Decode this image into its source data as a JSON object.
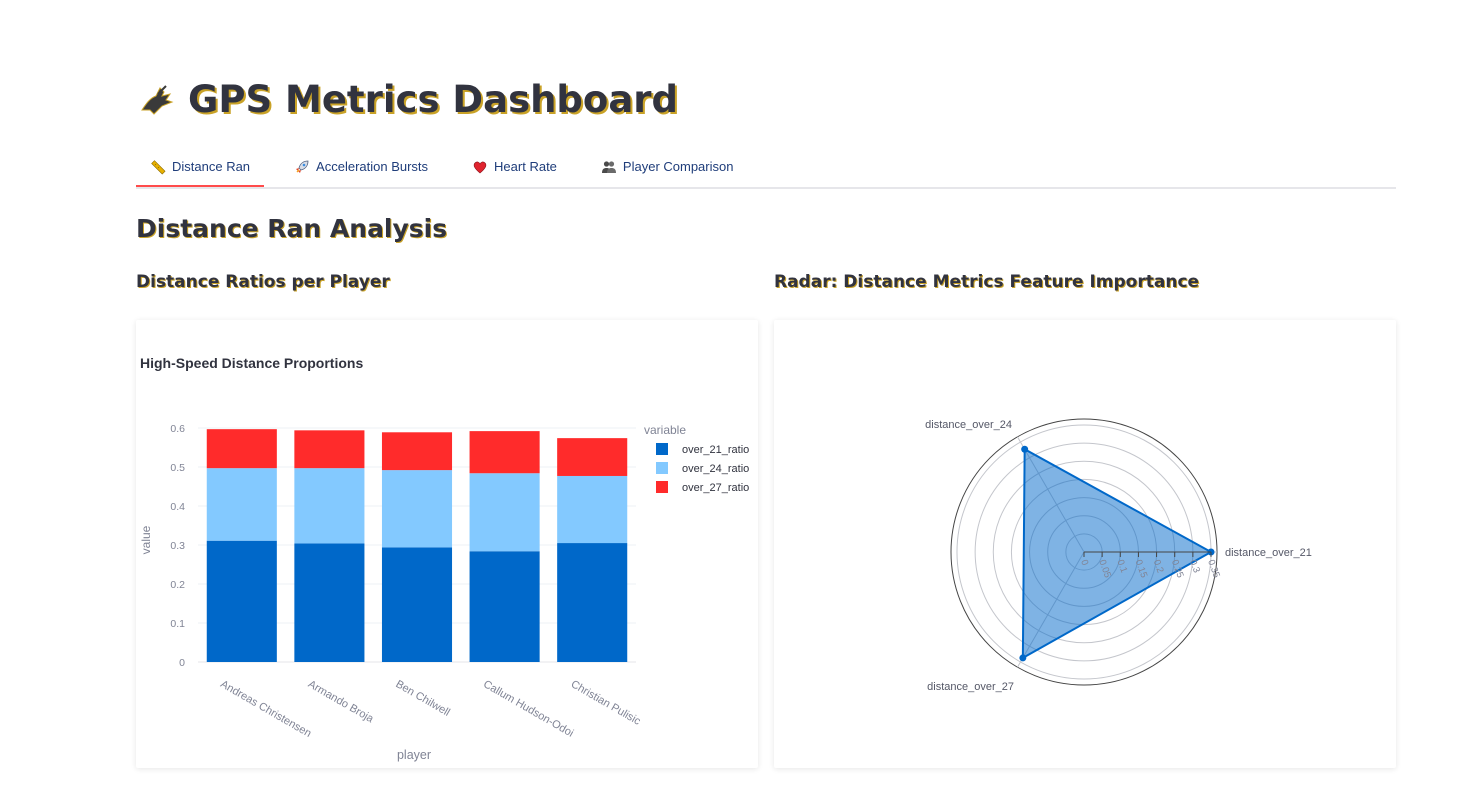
{
  "page": {
    "title": "GPS Metrics Dashboard",
    "title_icon": "shoe-icon"
  },
  "tabs": [
    {
      "label": "Distance Ran",
      "icon": "ruler-icon",
      "active": true
    },
    {
      "label": "Acceleration Bursts",
      "icon": "rocket-icon",
      "active": false
    },
    {
      "label": "Heart Rate",
      "icon": "heart-icon",
      "active": false
    },
    {
      "label": "Player Comparison",
      "icon": "people-icon",
      "active": false
    }
  ],
  "section": {
    "title": "Distance Ran Analysis",
    "left_subtitle": "Distance Ratios per Player",
    "right_subtitle": "Radar: Distance Metrics Feature Importance"
  },
  "colors": {
    "accent": "#ff4b4b",
    "series1": "#0068c9",
    "series2": "#83c9ff",
    "series3": "#ff2b2b"
  },
  "chart_data": [
    {
      "type": "bar",
      "stacked": true,
      "title": "High-Speed Distance Proportions",
      "xlabel": "player",
      "ylabel": "value",
      "legend_title": "variable",
      "legend_position": "top-right",
      "ylim": [
        0,
        0.6
      ],
      "yticks": [
        "0",
        "0.1",
        "0.2",
        "0.3",
        "0.4",
        "0.5",
        "0.6"
      ],
      "categories": [
        "Andreas Christensen",
        "Armando Broja",
        "Ben Chilwell",
        "Callum Hudson-Odoi",
        "Christian Pulisic"
      ],
      "series": [
        {
          "name": "over_21_ratio",
          "values": [
            0.311,
            0.304,
            0.294,
            0.284,
            0.305
          ]
        },
        {
          "name": "over_24_ratio",
          "values": [
            0.186,
            0.193,
            0.198,
            0.2,
            0.172
          ]
        },
        {
          "name": "over_27_ratio",
          "values": [
            0.1,
            0.097,
            0.097,
            0.108,
            0.097
          ]
        }
      ]
    },
    {
      "type": "radar",
      "axes": [
        "distance_over_21",
        "distance_over_24",
        "distance_over_27"
      ],
      "values": [
        0.35,
        0.327,
        0.337
      ],
      "radial_range": [
        0,
        0.35
      ],
      "radial_ticks": [
        "0",
        "0.05",
        "0.1",
        "0.15",
        "0.2",
        "0.25",
        "0.3",
        "0.35"
      ]
    }
  ]
}
